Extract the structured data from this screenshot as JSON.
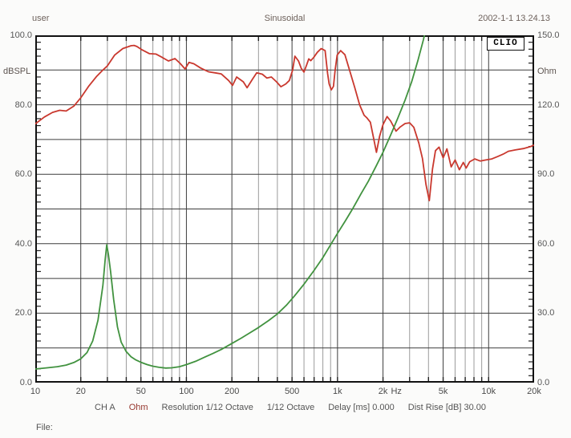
{
  "header": {
    "user_label": "user",
    "title": "Sinusoidal",
    "datetime": "2002-1-1 13.24.13"
  },
  "branding": {
    "logo": "CLIO"
  },
  "footer": {
    "file_label": "File:"
  },
  "status_bar": {
    "segments": [
      {
        "text": "CH A",
        "accent": false
      },
      {
        "text": "Ohm",
        "accent": true
      },
      {
        "text": "Resolution 1/12 Octave",
        "accent": false
      },
      {
        "text": "1/12 Octave",
        "accent": false
      },
      {
        "text": "Delay [ms] 0.000",
        "accent": false
      },
      {
        "text": "Dist Rise [dB] 30.00",
        "accent": false
      }
    ]
  },
  "chart_data": {
    "type": "line",
    "title": "Sinusoidal",
    "grid": true,
    "x_axis": {
      "scale": "log",
      "min": 10,
      "max": 20000,
      "unit": "Hz",
      "ticks": [
        {
          "v": 10,
          "t": "10"
        },
        {
          "v": 20,
          "t": "20"
        },
        {
          "v": 50,
          "t": "50"
        },
        {
          "v": 100,
          "t": "100"
        },
        {
          "v": 200,
          "t": "200"
        },
        {
          "v": 500,
          "t": "500"
        },
        {
          "v": 1000,
          "t": "1k"
        },
        {
          "v": 2000,
          "t": "2k"
        },
        {
          "v": 2450,
          "t": "Hz",
          "unit": true
        },
        {
          "v": 5000,
          "t": "5k"
        },
        {
          "v": 10000,
          "t": "10k"
        },
        {
          "v": 20000,
          "t": "20k"
        }
      ],
      "minor_gridlines": [
        30,
        40,
        60,
        70,
        80,
        90,
        300,
        400,
        600,
        700,
        800,
        900,
        3000,
        4000,
        6000,
        7000,
        8000,
        9000
      ]
    },
    "y_left": {
      "label": "dBSPL",
      "min": 0,
      "max": 100,
      "gridline_step": 10,
      "minor_tick_step": 2,
      "ticks": [
        {
          "v": 100,
          "t": "100.0"
        },
        {
          "v": 80,
          "t": "80.0"
        },
        {
          "v": 60,
          "t": "60.0"
        },
        {
          "v": 40,
          "t": "40.0"
        },
        {
          "v": 20,
          "t": "20.0"
        },
        {
          "v": 0,
          "t": "0.0"
        }
      ]
    },
    "y_right": {
      "label": "Ohm",
      "min": 0,
      "max": 150,
      "ticks": [
        {
          "v": 150,
          "t": "150.0"
        },
        {
          "v": 120,
          "t": "120.0"
        },
        {
          "v": 90,
          "t": "90.0"
        },
        {
          "v": 60,
          "t": "60.0"
        },
        {
          "v": 30,
          "t": "30.0"
        },
        {
          "v": 0,
          "t": "0.0"
        }
      ]
    },
    "series": [
      {
        "name": "spl-response",
        "axis": "left",
        "color": "#c9382e",
        "unit": "dBSPL",
        "points": [
          [
            10,
            74.5
          ],
          [
            11.5,
            76.5
          ],
          [
            13,
            77.8
          ],
          [
            14.5,
            78.4
          ],
          [
            16,
            78.2
          ],
          [
            18,
            79.6
          ],
          [
            20,
            82
          ],
          [
            22.5,
            85.3
          ],
          [
            25.5,
            88.2
          ],
          [
            28,
            90
          ],
          [
            30,
            91.2
          ],
          [
            33.5,
            94.3
          ],
          [
            38,
            96.2
          ],
          [
            43,
            97
          ],
          [
            45,
            97.1
          ],
          [
            47,
            96.8
          ],
          [
            51,
            95.8
          ],
          [
            57,
            94.7
          ],
          [
            63,
            94.6
          ],
          [
            68,
            93.8
          ],
          [
            76,
            92.6
          ],
          [
            84,
            93.3
          ],
          [
            91,
            91.9
          ],
          [
            98,
            90.3
          ],
          [
            104,
            92.2
          ],
          [
            112,
            91.8
          ],
          [
            124,
            90.6
          ],
          [
            140,
            89.5
          ],
          [
            155,
            89.2
          ],
          [
            170,
            88.9
          ],
          [
            190,
            87
          ],
          [
            202,
            85.6
          ],
          [
            215,
            88
          ],
          [
            238,
            86.6
          ],
          [
            252,
            84.9
          ],
          [
            275,
            87.5
          ],
          [
            292,
            89.2
          ],
          [
            318,
            88.8
          ],
          [
            341,
            87.7
          ],
          [
            365,
            88
          ],
          [
            395,
            86.6
          ],
          [
            422,
            85.2
          ],
          [
            455,
            86
          ],
          [
            480,
            87
          ],
          [
            505,
            90
          ],
          [
            522,
            94
          ],
          [
            552,
            92.6
          ],
          [
            575,
            90.5
          ],
          [
            600,
            89.4
          ],
          [
            625,
            91.5
          ],
          [
            645,
            93.2
          ],
          [
            665,
            92.7
          ],
          [
            695,
            93.6
          ],
          [
            735,
            95.1
          ],
          [
            780,
            96.2
          ],
          [
            828,
            95.6
          ],
          [
            860,
            89
          ],
          [
            880,
            86
          ],
          [
            910,
            84.3
          ],
          [
            940,
            85.3
          ],
          [
            965,
            90
          ],
          [
            995,
            94.3
          ],
          [
            1050,
            95.6
          ],
          [
            1120,
            94.4
          ],
          [
            1200,
            90
          ],
          [
            1300,
            85
          ],
          [
            1400,
            80
          ],
          [
            1500,
            77
          ],
          [
            1560,
            76.3
          ],
          [
            1650,
            75
          ],
          [
            1740,
            70
          ],
          [
            1810,
            66.3
          ],
          [
            1900,
            71
          ],
          [
            2000,
            74.3
          ],
          [
            2130,
            76.6
          ],
          [
            2250,
            75.3
          ],
          [
            2440,
            72.4
          ],
          [
            2600,
            73.6
          ],
          [
            2800,
            74.6
          ],
          [
            3000,
            74.8
          ],
          [
            3200,
            73.5
          ],
          [
            3450,
            69
          ],
          [
            3650,
            64.5
          ],
          [
            3850,
            57
          ],
          [
            4050,
            52.4
          ],
          [
            4250,
            61.5
          ],
          [
            4450,
            66.8
          ],
          [
            4700,
            67.8
          ],
          [
            5000,
            64.7
          ],
          [
            5300,
            67.3
          ],
          [
            5650,
            62.1
          ],
          [
            6000,
            64.1
          ],
          [
            6400,
            61.3
          ],
          [
            6800,
            63.4
          ],
          [
            7100,
            61.8
          ],
          [
            7500,
            63.6
          ],
          [
            8100,
            64.4
          ],
          [
            8800,
            63.8
          ],
          [
            9600,
            64.1
          ],
          [
            10500,
            64.4
          ],
          [
            11500,
            65.1
          ],
          [
            12500,
            65.8
          ],
          [
            13500,
            66.6
          ],
          [
            15000,
            67
          ],
          [
            17000,
            67.4
          ],
          [
            19000,
            68
          ],
          [
            20000,
            68.4
          ]
        ]
      },
      {
        "name": "impedance",
        "axis": "right",
        "color": "#41923f",
        "unit": "Ohm",
        "points": [
          [
            10,
            5.9
          ],
          [
            12,
            6.4
          ],
          [
            14,
            6.9
          ],
          [
            16,
            7.6
          ],
          [
            18,
            8.7
          ],
          [
            20,
            10.3
          ],
          [
            22,
            13
          ],
          [
            24,
            18
          ],
          [
            26,
            27
          ],
          [
            28,
            42
          ],
          [
            29,
            53
          ],
          [
            29.7,
            59.5
          ],
          [
            30.5,
            55
          ],
          [
            31.5,
            48
          ],
          [
            33,
            36
          ],
          [
            35,
            24
          ],
          [
            37,
            17.5
          ],
          [
            40,
            13.4
          ],
          [
            43,
            11.2
          ],
          [
            46,
            9.9
          ],
          [
            50,
            8.8
          ],
          [
            55,
            7.8
          ],
          [
            60,
            7.1
          ],
          [
            66,
            6.6
          ],
          [
            73,
            6.3
          ],
          [
            80,
            6.4
          ],
          [
            90,
            6.9
          ],
          [
            100,
            7.8
          ],
          [
            115,
            9.2
          ],
          [
            130,
            10.8
          ],
          [
            150,
            12.6
          ],
          [
            170,
            14.3
          ],
          [
            200,
            16.9
          ],
          [
            230,
            19.2
          ],
          [
            260,
            21.3
          ],
          [
            300,
            23.8
          ],
          [
            350,
            26.8
          ],
          [
            400,
            29.7
          ],
          [
            460,
            33.5
          ],
          [
            520,
            37.5
          ],
          [
            600,
            42.5
          ],
          [
            700,
            48.5
          ],
          [
            800,
            54
          ],
          [
            900,
            59.5
          ],
          [
            1000,
            64.5
          ],
          [
            1130,
            70
          ],
          [
            1270,
            75.5
          ],
          [
            1430,
            81.5
          ],
          [
            1600,
            87
          ],
          [
            1800,
            93.5
          ],
          [
            2000,
            99.5
          ],
          [
            2250,
            107
          ],
          [
            2500,
            114
          ],
          [
            2800,
            122
          ],
          [
            3100,
            130
          ],
          [
            3400,
            139
          ],
          [
            3700,
            148
          ],
          [
            3820,
            152
          ]
        ]
      }
    ]
  }
}
